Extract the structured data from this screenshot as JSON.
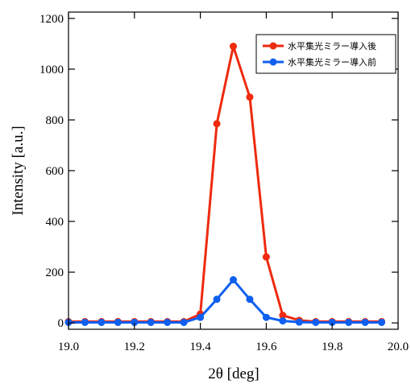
{
  "chart_data": {
    "type": "line",
    "xlabel": "2θ [deg]",
    "ylabel": "Intensity [a.u.]",
    "xlim": [
      19.0,
      20.0
    ],
    "ylim": [
      -25,
      1225
    ],
    "xticks": [
      19.0,
      19.2,
      19.4,
      19.6,
      19.8,
      20.0
    ],
    "xtick_labels": [
      "19.0",
      "19.2",
      "19.4",
      "19.6",
      "19.8",
      "20.0"
    ],
    "yticks": [
      0,
      200,
      400,
      600,
      800,
      1000,
      1200
    ],
    "ytick_labels": [
      "0",
      "200",
      "400",
      "600",
      "800",
      "1000",
      "1200"
    ],
    "x": [
      19.0,
      19.05,
      19.1,
      19.15,
      19.2,
      19.25,
      19.3,
      19.35,
      19.4,
      19.45,
      19.5,
      19.55,
      19.6,
      19.65,
      19.7,
      19.75,
      19.8,
      19.85,
      19.9,
      19.95
    ],
    "series": [
      {
        "name": "水平集光ミラー導入後",
        "color": "#ee2a0f",
        "values": [
          5,
          5,
          5,
          5,
          5,
          5,
          5,
          5,
          35,
          785,
          1090,
          890,
          260,
          30,
          10,
          5,
          5,
          5,
          5,
          5
        ]
      },
      {
        "name": "水平集光ミラー導入前",
        "color": "#0f5ff0",
        "values": [
          2,
          2,
          2,
          2,
          2,
          2,
          2,
          2,
          22,
          93,
          170,
          93,
          22,
          8,
          3,
          2,
          2,
          2,
          2,
          2
        ]
      }
    ],
    "legend_position": "top-right",
    "grid": false
  }
}
